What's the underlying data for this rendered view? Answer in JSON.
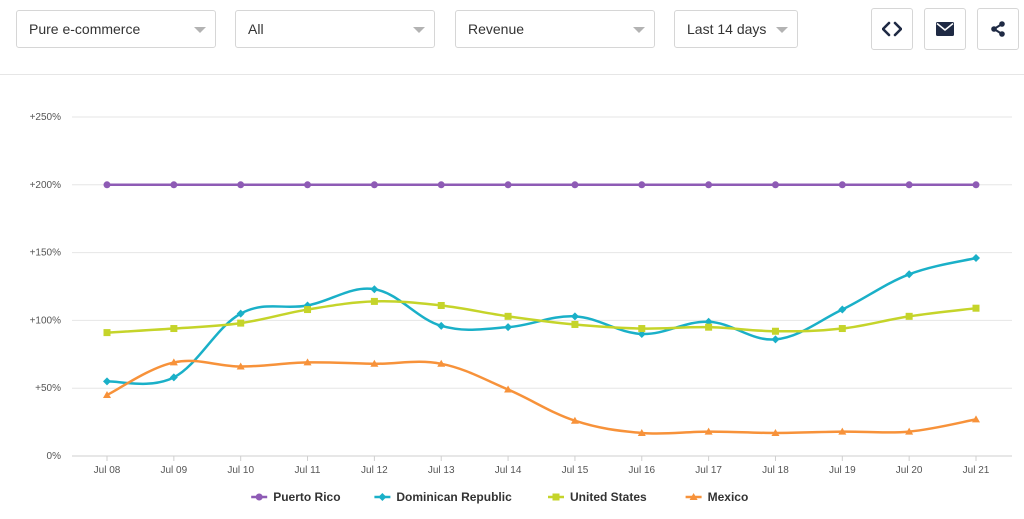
{
  "filters": {
    "store_type": "Pure e-commerce",
    "segment": "All",
    "metric": "Revenue",
    "period": "Last 14 days"
  },
  "actions": {
    "embed_icon": "code-icon",
    "email_icon": "envelope-icon",
    "share_icon": "share-icon"
  },
  "chart_data": {
    "type": "line",
    "x": [
      "Jul 08",
      "Jul 09",
      "Jul 10",
      "Jul 11",
      "Jul 12",
      "Jul 13",
      "Jul 14",
      "Jul 15",
      "Jul 16",
      "Jul 17",
      "Jul 18",
      "Jul 19",
      "Jul 20",
      "Jul 21"
    ],
    "y_ticks": [
      "0%",
      "+50%",
      "+100%",
      "+150%",
      "+200%",
      "+250%"
    ],
    "ylim": [
      0,
      250
    ],
    "grid": true,
    "legend_position": "bottom",
    "series": [
      {
        "name": "Puerto Rico",
        "color": "#8e5bb5",
        "marker": "circle",
        "values": [
          200,
          200,
          200,
          200,
          200,
          200,
          200,
          200,
          200,
          200,
          200,
          200,
          200,
          200
        ]
      },
      {
        "name": "Dominican Republic",
        "color": "#1ab0c8",
        "marker": "diamond",
        "values": [
          55,
          58,
          105,
          111,
          123,
          96,
          95,
          103,
          90,
          99,
          86,
          108,
          134,
          146
        ]
      },
      {
        "name": "United States",
        "color": "#c5d42a",
        "marker": "square",
        "values": [
          91,
          94,
          98,
          108,
          114,
          111,
          103,
          97,
          94,
          95,
          92,
          94,
          103,
          109
        ]
      },
      {
        "name": "Mexico",
        "color": "#f7923a",
        "marker": "triangle",
        "values": [
          45,
          69,
          66,
          69,
          68,
          68,
          49,
          26,
          17,
          18,
          17,
          18,
          18,
          27
        ]
      }
    ]
  }
}
